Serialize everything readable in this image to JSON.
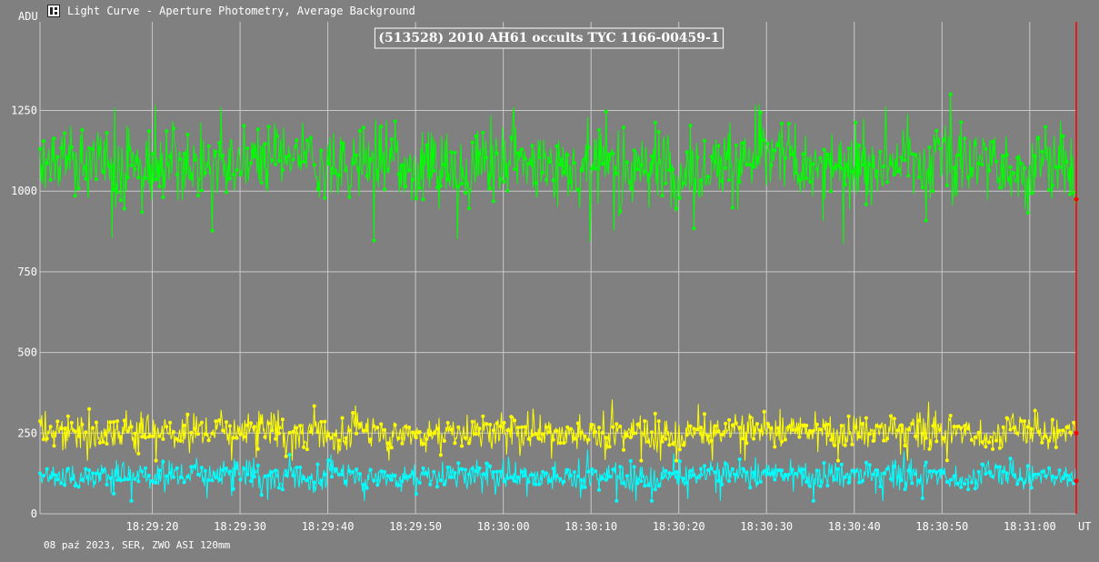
{
  "window": {
    "title": "Light Curve - Aperture Photometry, Average Background",
    "icon": "app-logo-icon",
    "footer": "08 paź 2023, SER, ZWO ASI 120mm"
  },
  "colors": {
    "background": "#808080",
    "grid": "#c8c8c8",
    "target": "#00ff00",
    "comparison": "#ffff00",
    "background_series": "#00ffff",
    "cursor": "#ff0000"
  },
  "chart_data": {
    "type": "line",
    "title": "(513528) 2010 AH61 occults TYC 1166-00459-1",
    "ylabel": "ADU",
    "xlabel": "UT",
    "ylim": [
      0,
      1525
    ],
    "xlim": [
      "18:29:07.2",
      "18:31:05.3"
    ],
    "yticks": [
      0,
      250,
      500,
      750,
      1000,
      1250
    ],
    "xticks": [
      "18:29:20",
      "18:29:30",
      "18:29:40",
      "18:29:50",
      "18:30:00",
      "18:30:10",
      "18:30:20",
      "18:30:30",
      "18:30:40",
      "18:30:50",
      "18:31:00"
    ],
    "grid": true,
    "frames": 1180,
    "cursor_at": "right-end",
    "series": [
      {
        "key": "target",
        "mean": 1085,
        "noise": 62,
        "min": 836,
        "max": 1328,
        "end_value": 975
      },
      {
        "key": "comparison",
        "mean": 253,
        "noise": 30,
        "min": 165,
        "max": 370,
        "end_value": 250
      },
      {
        "key": "background",
        "mean": 118,
        "noise": 24,
        "min": 40,
        "max": 200,
        "end_value": 102
      }
    ]
  }
}
